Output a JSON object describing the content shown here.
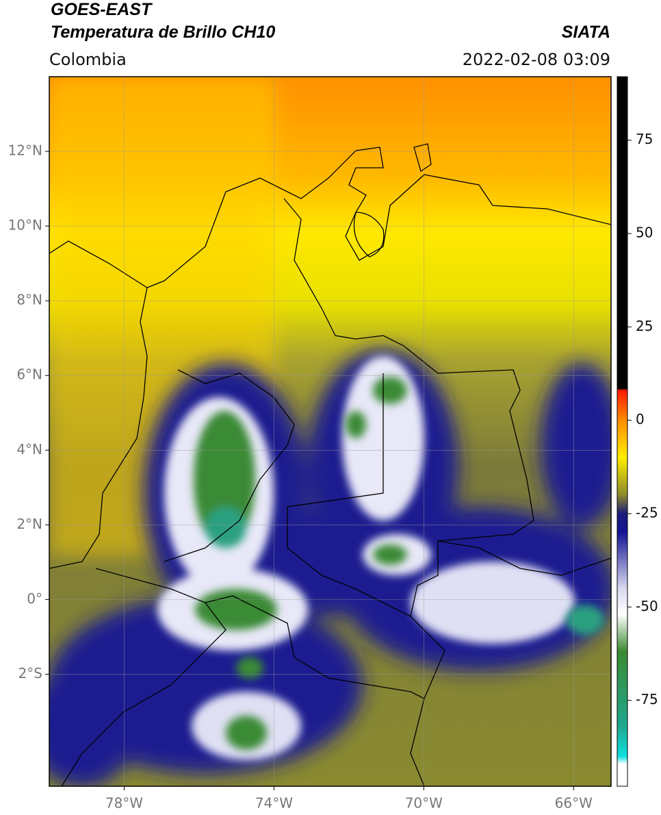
{
  "header": {
    "title_line1": "GOES-EAST",
    "title_line2": "Temperatura de Brillo CH10",
    "source": "SIATA",
    "region": "Colombia",
    "timestamp": "2022-02-08 03:09"
  },
  "map": {
    "xlim": [
      -80,
      -65
    ],
    "ylim": [
      -5,
      14
    ],
    "xticks": [
      {
        "value": -78,
        "label": "78°W"
      },
      {
        "value": -74,
        "label": "74°W"
      },
      {
        "value": -70,
        "label": "70°W"
      },
      {
        "value": -66,
        "label": "66°W"
      }
    ],
    "yticks": [
      {
        "value": 12,
        "label": "12°N"
      },
      {
        "value": 10,
        "label": "10°N"
      },
      {
        "value": 8,
        "label": "8°N"
      },
      {
        "value": 6,
        "label": "6°N"
      },
      {
        "value": 4,
        "label": "4°N"
      },
      {
        "value": 2,
        "label": "2°N"
      },
      {
        "value": 0,
        "label": "0°"
      },
      {
        "value": -2,
        "label": "2°S"
      }
    ],
    "grid": true
  },
  "colorbar": {
    "lim": [
      -98,
      92
    ],
    "ticks": [
      75,
      50,
      25,
      0,
      -25,
      -50,
      -75
    ],
    "colormap": [
      {
        "value": 92,
        "color": "#000000"
      },
      {
        "value": 8.5,
        "color": "#000000"
      },
      {
        "value": 8,
        "color": "#ff1a00"
      },
      {
        "value": 0,
        "color": "#ff8c00"
      },
      {
        "value": -10,
        "color": "#ffee00"
      },
      {
        "value": -20,
        "color": "#8c8a2a"
      },
      {
        "value": -25,
        "color": "#1c1c7a"
      },
      {
        "value": -30,
        "color": "#141496"
      },
      {
        "value": -45,
        "color": "#d8d8f0"
      },
      {
        "value": -52,
        "color": "#ffffff"
      },
      {
        "value": -62,
        "color": "#3a8a30"
      },
      {
        "value": -82,
        "color": "#20a890"
      },
      {
        "value": -90,
        "color": "#10e0e0"
      },
      {
        "value": -92,
        "color": "#ffffff"
      },
      {
        "value": -98,
        "color": "#ffffff"
      }
    ]
  }
}
